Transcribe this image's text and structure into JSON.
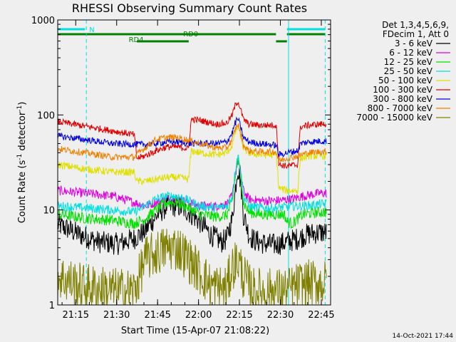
{
  "chart_data": {
    "type": "line",
    "title": "RHESSI Observing Summary Count Rates",
    "xlabel": "Start Time (15-Apr-07 21:08:22)",
    "ylabel_main": "Count Rate (s",
    "ylabel_sup1": "-1",
    "ylabel_mid": " detector",
    "ylabel_sup2": "-1",
    "ylabel_end": ")",
    "x_unit": "minutes after 21:08:22",
    "xlim": [
      0,
      100
    ],
    "ylim": [
      1,
      1000
    ],
    "yscale": "log",
    "x_ticks": [
      {
        "value": 6.6,
        "label": "21:15"
      },
      {
        "value": 21.6,
        "label": "21:30"
      },
      {
        "value": 36.6,
        "label": "21:45"
      },
      {
        "value": 51.6,
        "label": "22:00"
      },
      {
        "value": 66.6,
        "label": "22:15"
      },
      {
        "value": 81.6,
        "label": "22:30"
      },
      {
        "value": 96.6,
        "label": "22:45"
      }
    ],
    "y_ticks": [
      {
        "value": 1,
        "label": "1"
      },
      {
        "value": 10,
        "label": "10"
      },
      {
        "value": 100,
        "label": "100"
      },
      {
        "value": 1000,
        "label": "1000"
      }
    ],
    "legend": {
      "placement": "right",
      "header": [
        "Det 1,3,4,5,6,9,",
        "FDecim 1, Att 0"
      ]
    },
    "series": [
      {
        "name": "3 - 6 keV",
        "color": "#000000",
        "x": [
          0,
          8,
          15,
          22,
          28,
          32,
          36,
          40,
          44,
          48,
          52,
          56,
          60,
          62,
          64,
          65,
          66,
          67,
          68,
          70,
          72,
          76,
          80,
          84,
          88,
          92,
          96,
          99
        ],
        "y": [
          7,
          5.5,
          4.6,
          4.4,
          5,
          6,
          8.5,
          11,
          11,
          9.5,
          7.5,
          5.5,
          4.6,
          5,
          8,
          15,
          28,
          20,
          9,
          5.5,
          4.8,
          4.4,
          4.3,
          4.6,
          5,
          5.6,
          5.8,
          5.8
        ]
      },
      {
        "name": "6 - 12 keV",
        "color": "#e000e0",
        "x": [
          0,
          10,
          20,
          28,
          32,
          36,
          40,
          44,
          48,
          52,
          58,
          62,
          64,
          65,
          66,
          67,
          68,
          70,
          74,
          80,
          86,
          90,
          96,
          99
        ],
        "y": [
          16,
          15,
          14,
          12,
          11,
          12,
          13,
          13,
          12,
          11,
          11,
          11.5,
          14,
          22,
          33,
          25,
          16,
          13,
          12.5,
          12.5,
          13,
          14,
          15,
          15
        ]
      },
      {
        "name": "12 - 25 keV",
        "color": "#00e000",
        "x": [
          0,
          10,
          20,
          28,
          32,
          36,
          40,
          44,
          48,
          52,
          58,
          62,
          64,
          65,
          66,
          67,
          68,
          70,
          74,
          80,
          83,
          84,
          86,
          90,
          96,
          99
        ],
        "y": [
          9,
          8.2,
          7.8,
          7.2,
          8,
          10,
          12,
          12,
          10.5,
          9,
          8.5,
          8.8,
          12,
          22,
          33,
          24,
          12,
          9.5,
          9,
          9,
          9,
          7.5,
          7.2,
          9,
          9.5,
          9.5
        ]
      },
      {
        "name": "25 - 50 keV",
        "color": "#00e0e0",
        "x": [
          0,
          10,
          20,
          28,
          32,
          36,
          40,
          44,
          48,
          52,
          58,
          62,
          64,
          65,
          66,
          67,
          68,
          70,
          74,
          80,
          86,
          90,
          96,
          99
        ],
        "y": [
          11,
          10.5,
          10,
          9.5,
          11,
          13,
          14,
          14,
          12.5,
          11,
          10.5,
          11,
          14,
          25,
          38,
          26,
          14,
          11,
          10.5,
          10.5,
          11,
          11,
          11.5,
          11.5
        ]
      },
      {
        "name": "50 - 100 keV",
        "color": "#e0e000",
        "x": [
          0,
          10,
          20,
          28,
          29,
          32,
          36,
          40,
          44,
          48,
          49,
          52,
          58,
          62,
          64,
          65,
          66,
          67,
          68,
          70,
          74,
          80,
          81,
          84,
          88,
          89,
          92,
          96,
          99
        ],
        "y": [
          30,
          27,
          25,
          25,
          20,
          20,
          21,
          22,
          22,
          21,
          42,
          40,
          38,
          40,
          48,
          65,
          75,
          60,
          45,
          40,
          38,
          38,
          17,
          16,
          16,
          35,
          37,
          37,
          37
        ]
      },
      {
        "name": "100 - 300 keV",
        "color": "#e00000",
        "x": [
          0,
          10,
          20,
          28,
          29,
          32,
          36,
          40,
          44,
          48,
          49,
          52,
          58,
          62,
          64,
          65,
          66,
          67,
          68,
          70,
          74,
          80,
          81,
          84,
          88,
          89,
          92,
          96,
          99
        ],
        "y": [
          85,
          76,
          68,
          62,
          35,
          37,
          42,
          46,
          46,
          44,
          90,
          88,
          80,
          82,
          100,
          125,
          140,
          115,
          90,
          80,
          78,
          78,
          30,
          29,
          30,
          75,
          78,
          80,
          80
        ]
      },
      {
        "name": "300 - 800 keV",
        "color": "#0000e0",
        "x": [
          0,
          10,
          20,
          28,
          32,
          36,
          40,
          44,
          48,
          52,
          58,
          62,
          64,
          65,
          66,
          67,
          68,
          70,
          74,
          80,
          81,
          84,
          88,
          89,
          92,
          96,
          99
        ],
        "y": [
          60,
          55,
          50,
          49,
          49,
          50,
          52,
          52,
          50,
          50,
          50,
          52,
          65,
          82,
          92,
          75,
          58,
          52,
          50,
          48,
          38,
          40,
          42,
          50,
          52,
          53,
          53
        ]
      },
      {
        "name": "800 - 7000 keV",
        "color": "#f08000",
        "x": [
          0,
          10,
          20,
          28,
          32,
          36,
          40,
          44,
          48,
          52,
          58,
          62,
          64,
          65,
          66,
          67,
          68,
          70,
          74,
          80,
          81,
          84,
          88,
          89,
          92,
          96,
          99
        ],
        "y": [
          44,
          40,
          36,
          36,
          45,
          55,
          58,
          58,
          54,
          50,
          45,
          45,
          55,
          70,
          80,
          65,
          48,
          42,
          41,
          41,
          33,
          35,
          37,
          38,
          40,
          41,
          41
        ]
      },
      {
        "name": "7000 - 15000 keV",
        "color": "#808000",
        "x": [
          0,
          8,
          15,
          22,
          28,
          30,
          32,
          36,
          40,
          44,
          46,
          48,
          52,
          56,
          60,
          62,
          64,
          66,
          68,
          70,
          72,
          76,
          80,
          84,
          88,
          92,
          96,
          99
        ],
        "y": [
          2,
          1.6,
          1.5,
          1.4,
          1.4,
          2,
          3,
          3.5,
          4,
          4,
          3.5,
          3,
          2.2,
          1.6,
          1.5,
          1.5,
          2.5,
          3,
          2,
          1.6,
          1.4,
          1.4,
          1.4,
          1.4,
          1.6,
          1.7,
          1.7,
          1.7
        ]
      }
    ],
    "spikes": [
      {
        "series": 8,
        "mean": 1.7,
        "spread": 0.55,
        "min": 1
      },
      {
        "series": 0,
        "mean": 1.0,
        "spread": 0.16,
        "min": 1
      }
    ],
    "annotations": {
      "mode_bars": [
        {
          "label": "N",
          "color": "#00e0e0",
          "row": 0,
          "segments": [
            [
              0,
              10
            ],
            [
              84,
              98
            ]
          ]
        },
        {
          "label": "RD0",
          "color": "#008000",
          "row": 1,
          "segments": [
            [
              0,
              49
            ],
            [
              49,
              80
            ],
            [
              84,
              98
            ]
          ]
        },
        {
          "label": "RD4",
          "color": "#008000",
          "row": 2,
          "segments": [
            [
              29,
              48
            ],
            [
              80,
              84
            ]
          ]
        }
      ],
      "vlines": [
        {
          "x": 0,
          "color": "#00e0e0",
          "style": "solid"
        },
        {
          "x": 10.5,
          "color": "#00e0e0",
          "style": "dashed"
        },
        {
          "x": 84.6,
          "color": "#00e0e0",
          "style": "solid"
        },
        {
          "x": 98,
          "color": "#00e0e0",
          "style": "dashed"
        }
      ]
    },
    "grid": false
  },
  "footer": {
    "timestamp": "14-Oct-2021 17:44"
  }
}
